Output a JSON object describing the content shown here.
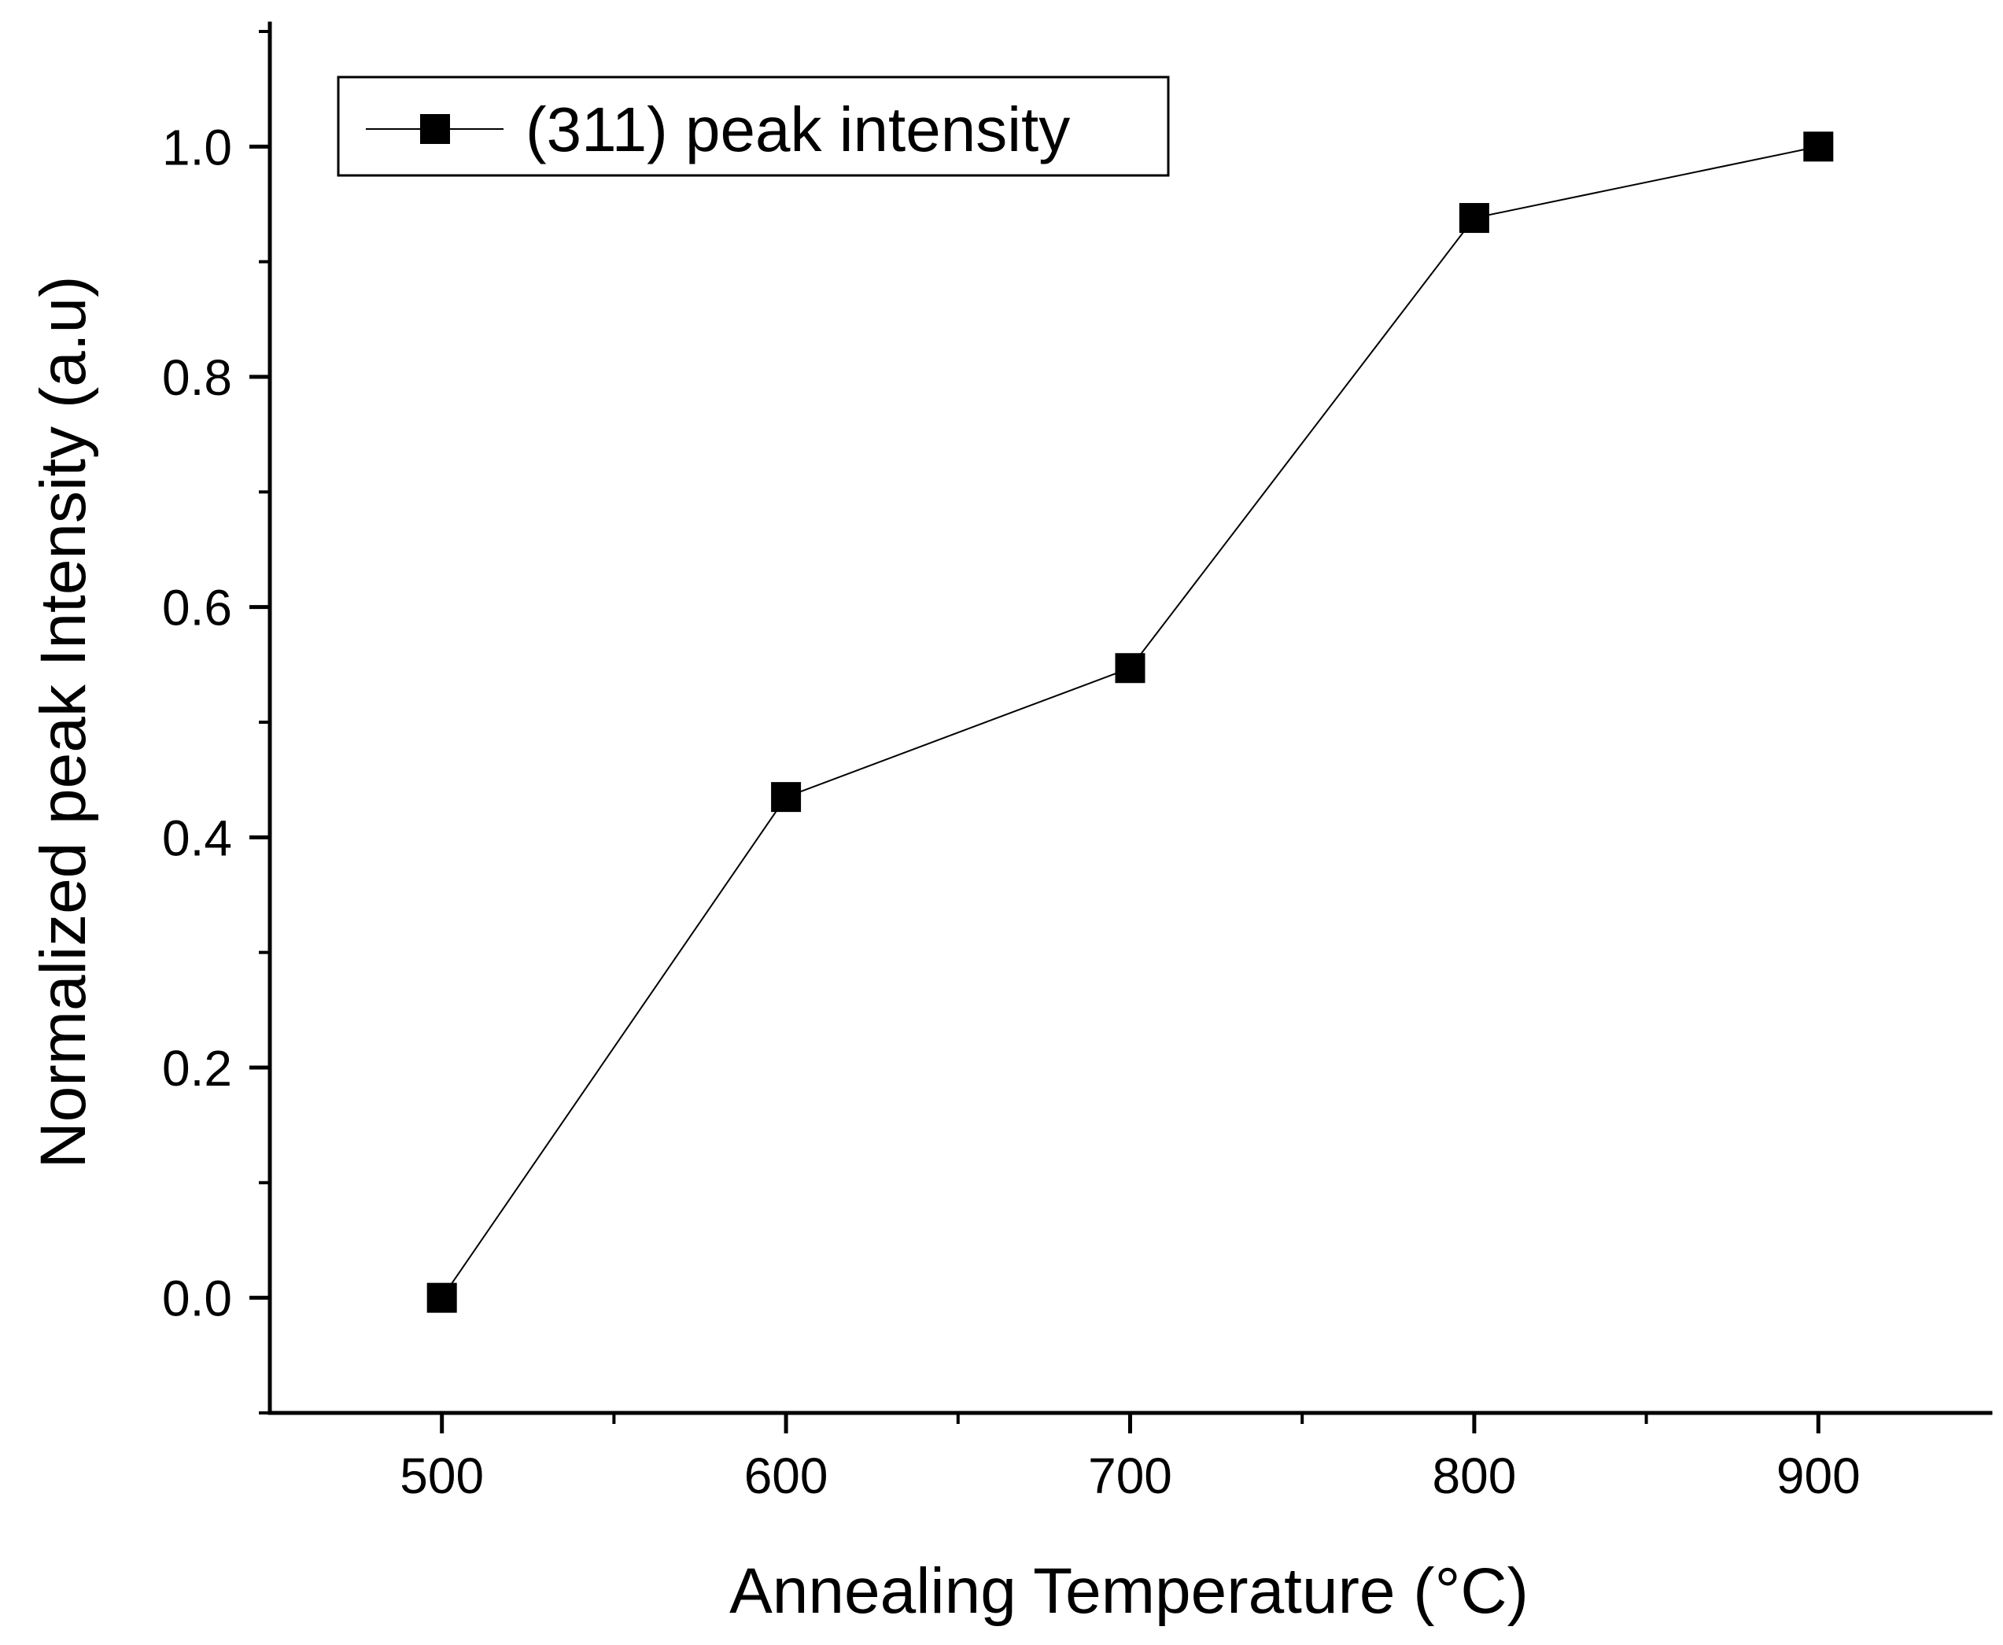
{
  "chart_data": {
    "type": "line",
    "title": "",
    "xlabel": "Annealing Temperature (°C)",
    "ylabel": "Normalized peak Intensity (a.u)",
    "xlim": [
      450,
      950
    ],
    "ylim": [
      -0.1,
      1.1
    ],
    "x_ticks": [
      500,
      600,
      700,
      800,
      900
    ],
    "x_tick_labels": [
      "500",
      "600",
      "700",
      "800",
      "900"
    ],
    "y_ticks": [
      0.0,
      0.2,
      0.4,
      0.6,
      0.8,
      1.0
    ],
    "y_tick_labels": [
      "0.0",
      "0.2",
      "0.4",
      "0.6",
      "0.8",
      "1.0"
    ],
    "y_minor_ticks": [
      -0.1,
      0.1,
      0.3,
      0.5,
      0.7,
      0.9,
      1.1
    ],
    "grid": false,
    "legend_position": "top-left",
    "series": [
      {
        "name": "(311) peak intensity",
        "marker": "square",
        "color": "#000000",
        "x": [
          500,
          600,
          700,
          800,
          900
        ],
        "values": [
          0.0,
          0.435,
          0.547,
          0.938,
          1.0
        ]
      }
    ]
  }
}
